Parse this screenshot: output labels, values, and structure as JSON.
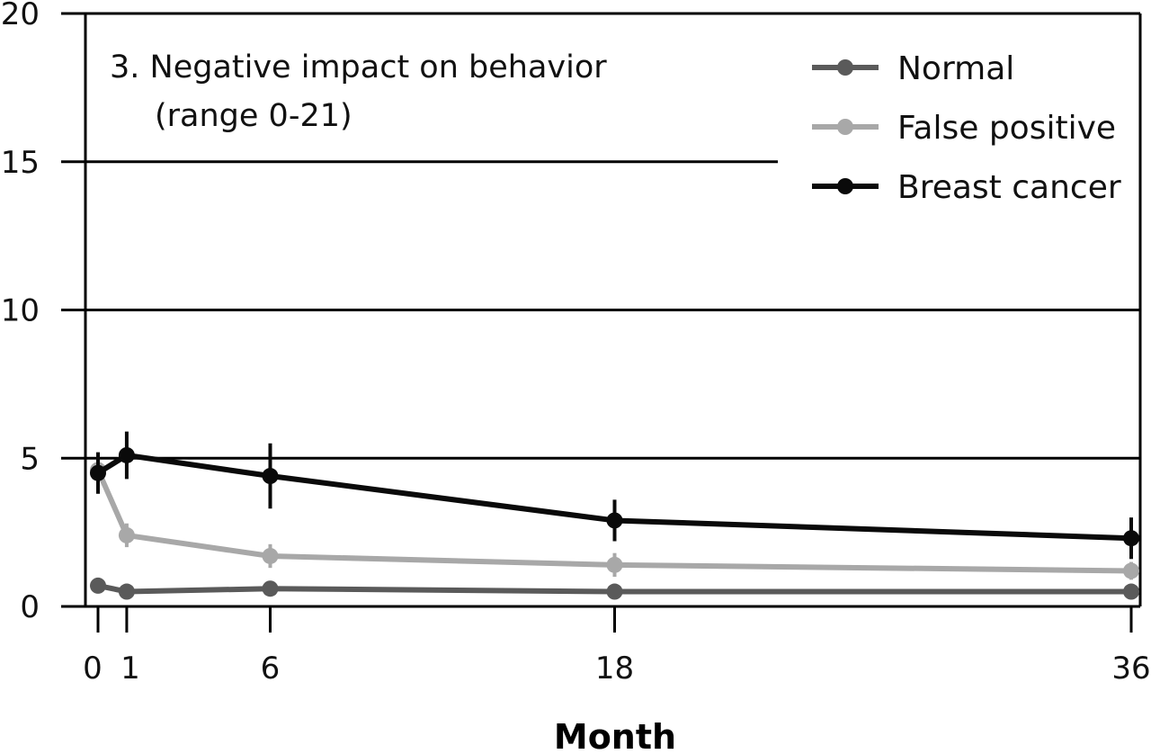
{
  "chart_data": {
    "type": "line",
    "title": "3. Negative impact on behavior",
    "subtitle": "(range 0-21)",
    "xlabel": "Month",
    "ylabel": "",
    "x": [
      0,
      1,
      6,
      18,
      36
    ],
    "x_tick_labels": [
      "0",
      "1",
      "6",
      "18",
      "36"
    ],
    "y_ticks": [
      0,
      5,
      10,
      15,
      20
    ],
    "y_tick_labels": [
      "0",
      "5",
      "10",
      "15",
      "20"
    ],
    "xlim": [
      -0.5,
      36.3
    ],
    "ylim": [
      0,
      20
    ],
    "grid": "horizontal",
    "legend_position": "top-right",
    "series": [
      {
        "name": "Normal",
        "color": "#5a5a5a",
        "values": [
          0.7,
          0.5,
          0.6,
          0.5,
          0.5
        ],
        "error": [
          0.1,
          0.1,
          0.1,
          0.1,
          0.1
        ]
      },
      {
        "name": "False positive",
        "color": "#a8a8a8",
        "values": [
          4.6,
          2.4,
          1.7,
          1.4,
          1.2
        ],
        "error": [
          0.6,
          0.4,
          0.4,
          0.4,
          0.3
        ]
      },
      {
        "name": "Breast cancer",
        "color": "#0a0a0a",
        "values": [
          4.5,
          5.1,
          4.4,
          2.9,
          2.3
        ],
        "error": [
          0.7,
          0.8,
          1.1,
          0.7,
          0.7
        ]
      }
    ]
  }
}
